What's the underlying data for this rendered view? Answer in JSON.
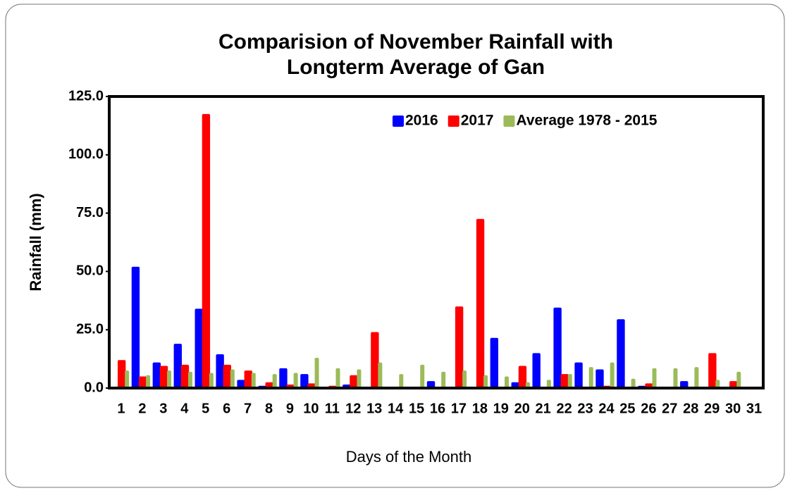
{
  "chart_data": {
    "type": "bar",
    "title": "Comparision of November Rainfall with Longterm Average of Gan",
    "x_label": "Days of the Month",
    "y_label": "Rainfall (mm)",
    "categories": [
      "1",
      "2",
      "3",
      "4",
      "5",
      "6",
      "7",
      "8",
      "9",
      "10",
      "11",
      "12",
      "13",
      "14",
      "15",
      "16",
      "17",
      "18",
      "19",
      "20",
      "21",
      "22",
      "23",
      "24",
      "25",
      "26",
      "27",
      "28",
      "29",
      "30",
      "31"
    ],
    "series": [
      {
        "name": "2016",
        "color": "#0000ff",
        "values": [
          0,
          52,
          11,
          19,
          34,
          14.5,
          3.5,
          1,
          8.5,
          6,
          0,
          1.5,
          0,
          0,
          0,
          3,
          0,
          0,
          21.5,
          2.5,
          15,
          34.5,
          11,
          8,
          29.5,
          1,
          0,
          3,
          0,
          0,
          0
        ]
      },
      {
        "name": "2017",
        "color": "#ff0000",
        "values": [
          12,
          5,
          9.5,
          10,
          117.5,
          10,
          7.5,
          2.5,
          1.5,
          2,
          1,
          5.5,
          24,
          0,
          0,
          0,
          35,
          72.5,
          0,
          9.5,
          0,
          6,
          0,
          1,
          0,
          2,
          0,
          0,
          15,
          3,
          0
        ]
      },
      {
        "name": "Average 1978 - 2015",
        "color": "#9bbb59",
        "values": [
          7.5,
          5.5,
          7.5,
          7,
          6.5,
          8,
          6.5,
          6,
          6.5,
          13,
          8.5,
          8,
          11,
          6,
          10,
          7,
          7.5,
          5.5,
          5,
          2.5,
          3.5,
          6,
          9,
          11,
          4,
          8.5,
          8.5,
          9,
          3.5,
          7,
          0
        ]
      }
    ],
    "ylim": [
      0,
      125
    ],
    "yticks": [
      {
        "value": 0,
        "label": "0.0"
      },
      {
        "value": 25,
        "label": "25.0"
      },
      {
        "value": 50,
        "label": "50.0"
      },
      {
        "value": 75,
        "label": "75.0"
      },
      {
        "value": 100,
        "label": "100.0"
      },
      {
        "value": 125,
        "label": "125.0"
      }
    ],
    "legend": "top-right"
  }
}
